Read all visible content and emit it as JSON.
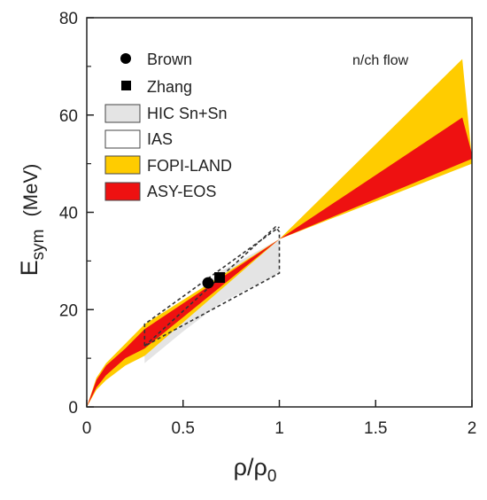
{
  "colors": {
    "hic": "#e4e4e4",
    "ias_fill": "#ffffff",
    "fopi": "#ffcc00",
    "asy": "#ee1111",
    "axis": "#222222"
  },
  "chart_data": {
    "type": "area",
    "xlabel": {
      "main": "ρ/ρ",
      "sub": "0"
    },
    "ylabel": {
      "main": "E",
      "sub": "sym",
      "unit": "(MeV)"
    },
    "xlim": [
      0,
      2
    ],
    "ylim": [
      0,
      80
    ],
    "xticks": [
      0,
      0.5,
      1,
      1.5,
      2
    ],
    "xtick_labels": [
      "0",
      "0.5",
      "1",
      "1.5",
      "2"
    ],
    "yticks": [
      0,
      20,
      40,
      60,
      80
    ],
    "ytick_labels": [
      "0",
      "20",
      "40",
      "60",
      "80"
    ],
    "annotation": "n/ch flow",
    "legend": {
      "placement": "top-left",
      "items": [
        {
          "label": "Brown",
          "kind": "marker-circle"
        },
        {
          "label": "Zhang",
          "kind": "marker-square"
        },
        {
          "label": "HIC Sn+Sn",
          "kind": "patch",
          "color": "#e4e4e4"
        },
        {
          "label": "IAS",
          "kind": "patch",
          "color": "#ffffff"
        },
        {
          "label": "FOPI-LAND",
          "kind": "patch",
          "color": "#ffcc00"
        },
        {
          "label": "ASY-EOS",
          "kind": "patch",
          "color": "#ee1111"
        }
      ]
    },
    "points": [
      {
        "label": "Brown",
        "marker": "circle",
        "x": 0.63,
        "y": 25.5
      },
      {
        "label": "Zhang",
        "marker": "square",
        "x": 0.69,
        "y": 26.6
      }
    ],
    "regions": [
      {
        "name": "HIC Sn+Sn",
        "upper": [
          [
            0.3,
            13.5
          ],
          [
            0.5,
            21.0
          ],
          [
            0.7,
            28.0
          ],
          [
            1.0,
            34.5
          ]
        ],
        "lower": [
          [
            0.3,
            9.0
          ],
          [
            0.5,
            15.5
          ],
          [
            0.7,
            21.5
          ],
          [
            1.0,
            27.5
          ]
        ]
      },
      {
        "name": "IAS",
        "polygon": [
          [
            0.3,
            12.5
          ],
          [
            0.98,
            37.0
          ],
          [
            1.0,
            36.0
          ],
          [
            1.0,
            27.5
          ],
          [
            0.3,
            12.5
          ],
          [
            0.3,
            17.0
          ],
          [
            1.0,
            37.0
          ]
        ]
      },
      {
        "name": "FOPI-LAND",
        "upper": [
          [
            0.0,
            0.0
          ],
          [
            0.05,
            6.0
          ],
          [
            0.1,
            9.0
          ],
          [
            0.2,
            13.0
          ],
          [
            0.3,
            17.0
          ],
          [
            1.0,
            34.5
          ],
          [
            1.95,
            71.5
          ],
          [
            2.0,
            51.0
          ]
        ],
        "lower": [
          [
            0.0,
            0.0
          ],
          [
            0.05,
            3.5
          ],
          [
            0.1,
            5.5
          ],
          [
            0.2,
            8.5
          ],
          [
            0.3,
            10.5
          ],
          [
            1.0,
            34.5
          ],
          [
            2.0,
            50.0
          ]
        ]
      },
      {
        "name": "ASY-EOS",
        "upper": [
          [
            0.0,
            0.0
          ],
          [
            0.05,
            5.5
          ],
          [
            0.1,
            8.5
          ],
          [
            0.2,
            12.0
          ],
          [
            0.3,
            16.0
          ],
          [
            1.0,
            34.5
          ],
          [
            1.95,
            59.5
          ],
          [
            2.0,
            52.0
          ]
        ],
        "lower": [
          [
            0.0,
            0.0
          ],
          [
            0.05,
            4.0
          ],
          [
            0.1,
            6.5
          ],
          [
            0.2,
            10.0
          ],
          [
            0.3,
            12.0
          ],
          [
            1.0,
            34.5
          ],
          [
            2.0,
            51.0
          ]
        ]
      }
    ]
  }
}
